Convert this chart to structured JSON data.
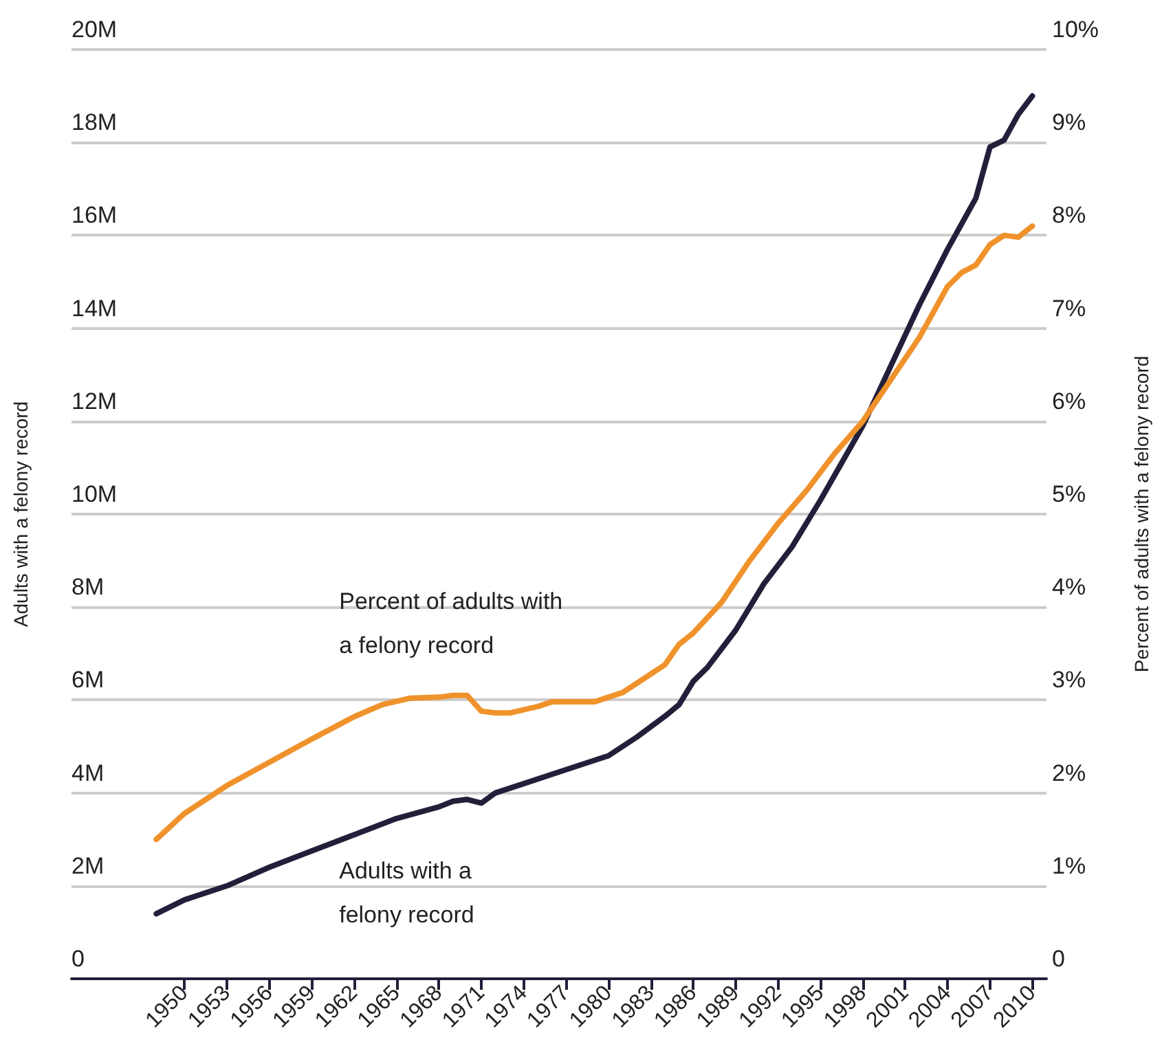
{
  "chart_data": {
    "type": "line",
    "ylabel": "Adults with a felony record",
    "y2label": "Percent of adults with a felony record",
    "xlim": [
      1942,
      2011
    ],
    "xticks": [
      1950,
      1953,
      1956,
      1959,
      1962,
      1965,
      1968,
      1971,
      1974,
      1977,
      1980,
      1983,
      1986,
      1989,
      1992,
      1995,
      1998,
      2001,
      2004,
      2007,
      2010
    ],
    "ylim": [
      0,
      20
    ],
    "yticks": [
      0,
      {
        "value": 2,
        "label": "2M"
      },
      {
        "value": 4,
        "label": "4M"
      },
      {
        "value": 6,
        "label": "6M"
      },
      {
        "value": 8,
        "label": "8M"
      },
      {
        "value": 10,
        "label": "10M"
      },
      {
        "value": 12,
        "label": "12M"
      },
      {
        "value": 14,
        "label": "14M"
      },
      {
        "value": 16,
        "label": "16M"
      },
      {
        "value": 18,
        "label": "18M"
      },
      {
        "value": 20,
        "label": "20M"
      }
    ],
    "y2lim": [
      0,
      10
    ],
    "y2ticks": [
      0,
      {
        "value": 1,
        "label": "1%"
      },
      {
        "value": 2,
        "label": "2%"
      },
      {
        "value": 3,
        "label": "3%"
      },
      {
        "value": 4,
        "label": "4%"
      },
      {
        "value": 5,
        "label": "5%"
      },
      {
        "value": 6,
        "label": "6%"
      },
      {
        "value": 7,
        "label": "7%"
      },
      {
        "value": 8,
        "label": "8%"
      },
      {
        "value": 9,
        "label": "9%"
      },
      {
        "value": 10,
        "label": "10%"
      }
    ],
    "grid": "y",
    "marker": "none",
    "line_style": "solid",
    "series": [
      {
        "name": "Adults with a felony record",
        "color": "#231f3a",
        "x": [
          1948,
          1950,
          1953,
          1956,
          1959,
          1962,
          1965,
          1968,
          1969,
          1970,
          1971,
          1972,
          1974,
          1977,
          1980,
          1982,
          1984,
          1985,
          1986,
          1987,
          1989,
          1991,
          1993,
          1995,
          1998,
          2000,
          2002,
          2004,
          2006,
          2007,
          2008,
          2009,
          2010
        ],
        "values": [
          1.4,
          1.7,
          2.0,
          2.4,
          2.75,
          3.1,
          3.45,
          3.7,
          3.82,
          3.86,
          3.78,
          4.0,
          4.2,
          4.5,
          4.8,
          5.2,
          5.65,
          5.9,
          6.4,
          6.7,
          7.5,
          8.5,
          9.3,
          10.3,
          11.9,
          13.2,
          14.5,
          15.7,
          16.8,
          17.9,
          18.05,
          18.6,
          19.0
        ]
      },
      {
        "name": "Percent of adults with a felony record",
        "color": "#f0922b",
        "axis": "y2",
        "x": [
          1948,
          1950,
          1953,
          1956,
          1959,
          1962,
          1964,
          1966,
          1968,
          1969,
          1970,
          1971,
          1972,
          1973,
          1975,
          1976,
          1979,
          1981,
          1983,
          1984,
          1985,
          1986,
          1988,
          1990,
          1992,
          1994,
          1996,
          1998,
          2000,
          2002,
          2004,
          2005,
          2006,
          2007,
          2008,
          2009,
          2010
        ],
        "values": [
          1.5,
          1.78,
          2.08,
          2.33,
          2.58,
          2.82,
          2.95,
          3.02,
          3.03,
          3.05,
          3.05,
          2.88,
          2.86,
          2.86,
          2.93,
          2.98,
          2.98,
          3.08,
          3.28,
          3.38,
          3.6,
          3.72,
          4.05,
          4.5,
          4.9,
          5.25,
          5.65,
          6.0,
          6.45,
          6.9,
          7.45,
          7.6,
          7.68,
          7.9,
          8.0,
          7.98,
          8.1
        ]
      }
    ]
  }
}
